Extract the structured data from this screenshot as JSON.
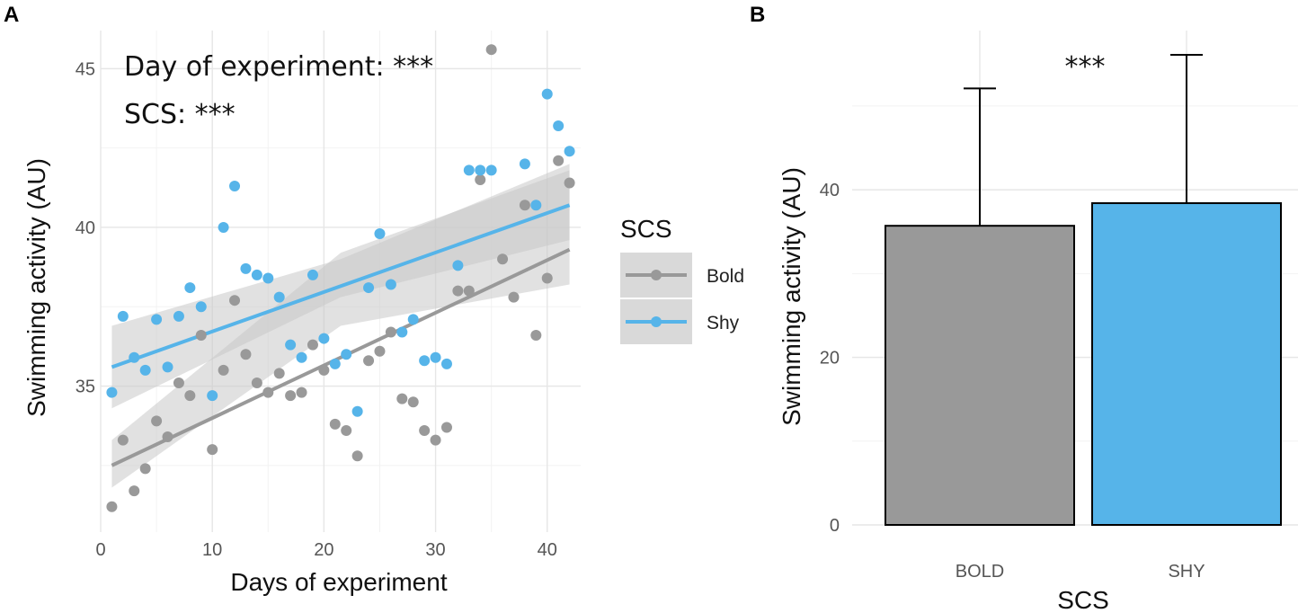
{
  "chart_data": [
    {
      "panel": "A",
      "type": "scatter",
      "title": "",
      "xlabel": "Days of experiment",
      "ylabel": "Swimming activity (AU)",
      "xlim": [
        0,
        43
      ],
      "ylim": [
        30.4,
        46.2
      ],
      "xticks": [
        0,
        10,
        20,
        30,
        40
      ],
      "yticks": [
        35,
        40,
        45
      ],
      "grid": true,
      "annotations": [
        "Day of experiment: ***",
        "SCS: ***"
      ],
      "legend": {
        "title": "SCS",
        "position": "right",
        "entries": [
          "Bold",
          "Shy"
        ]
      },
      "series": [
        {
          "name": "Bold",
          "color": "#999999",
          "points": [
            [
              1,
              31.2
            ],
            [
              2,
              33.3
            ],
            [
              3,
              31.7
            ],
            [
              4,
              32.4
            ],
            [
              5,
              33.9
            ],
            [
              6,
              33.4
            ],
            [
              7,
              35.1
            ],
            [
              8,
              34.7
            ],
            [
              9,
              36.6
            ],
            [
              10,
              33.0
            ],
            [
              11,
              35.5
            ],
            [
              12,
              37.7
            ],
            [
              13,
              36.0
            ],
            [
              14,
              35.1
            ],
            [
              15,
              34.8
            ],
            [
              16,
              35.4
            ],
            [
              17,
              34.7
            ],
            [
              18,
              34.8
            ],
            [
              19,
              36.3
            ],
            [
              20,
              35.5
            ],
            [
              21,
              33.8
            ],
            [
              22,
              33.6
            ],
            [
              23,
              32.8
            ],
            [
              24,
              35.8
            ],
            [
              25,
              36.1
            ],
            [
              26,
              36.7
            ],
            [
              27,
              34.6
            ],
            [
              28,
              34.5
            ],
            [
              29,
              33.6
            ],
            [
              30,
              33.3
            ],
            [
              31,
              33.7
            ],
            [
              32,
              38.0
            ],
            [
              33,
              38.0
            ],
            [
              34,
              41.5
            ],
            [
              35,
              45.6
            ],
            [
              36,
              39.0
            ],
            [
              37,
              37.8
            ],
            [
              38,
              40.7
            ],
            [
              39,
              36.6
            ],
            [
              40,
              38.4
            ],
            [
              41,
              42.1
            ],
            [
              42,
              41.4
            ]
          ],
          "trend": {
            "x": [
              1,
              42
            ],
            "y": [
              32.5,
              39.3
            ]
          },
          "ci_lower": [
            31.8,
            36.9,
            38.2
          ],
          "ci_upper": [
            33.3,
            39.2,
            41.8
          ]
        },
        {
          "name": "Shy",
          "color": "#56B4E9",
          "points": [
            [
              1,
              34.8
            ],
            [
              2,
              37.2
            ],
            [
              3,
              35.9
            ],
            [
              4,
              35.5
            ],
            [
              5,
              37.1
            ],
            [
              6,
              35.6
            ],
            [
              7,
              37.2
            ],
            [
              8,
              38.1
            ],
            [
              9,
              37.5
            ],
            [
              10,
              34.7
            ],
            [
              11,
              40.0
            ],
            [
              12,
              41.3
            ],
            [
              13,
              38.7
            ],
            [
              14,
              38.5
            ],
            [
              15,
              38.4
            ],
            [
              16,
              37.8
            ],
            [
              17,
              36.3
            ],
            [
              18,
              35.9
            ],
            [
              19,
              38.5
            ],
            [
              20,
              36.5
            ],
            [
              21,
              35.7
            ],
            [
              22,
              36.0
            ],
            [
              23,
              34.2
            ],
            [
              24,
              38.1
            ],
            [
              25,
              39.8
            ],
            [
              26,
              38.2
            ],
            [
              27,
              36.7
            ],
            [
              28,
              37.1
            ],
            [
              29,
              35.8
            ],
            [
              30,
              35.9
            ],
            [
              31,
              35.7
            ],
            [
              32,
              38.8
            ],
            [
              33,
              41.8
            ],
            [
              34,
              41.8
            ],
            [
              35,
              41.8
            ],
            [
              38,
              42.0
            ],
            [
              39,
              40.7
            ],
            [
              40,
              44.2
            ],
            [
              41,
              43.2
            ],
            [
              42,
              42.4
            ]
          ],
          "trend": {
            "x": [
              1,
              42
            ],
            "y": [
              35.6,
              40.7
            ]
          },
          "ci_lower": [
            34.3,
            37.8,
            39.6
          ],
          "ci_upper": [
            36.9,
            39.0,
            42.0
          ]
        }
      ]
    },
    {
      "panel": "B",
      "type": "bar",
      "title": "",
      "xlabel": "SCS",
      "ylabel": "Swimming activity (AU)",
      "categories": [
        "BOLD",
        "SHY"
      ],
      "values": [
        35.7,
        38.4
      ],
      "error_upper": [
        52.1,
        56.1
      ],
      "colors": [
        "#999999",
        "#56B4E9"
      ],
      "ylim": [
        0,
        59
      ],
      "yticks": [
        0,
        20,
        40
      ],
      "grid": true,
      "annotations": [
        "***"
      ]
    }
  ]
}
